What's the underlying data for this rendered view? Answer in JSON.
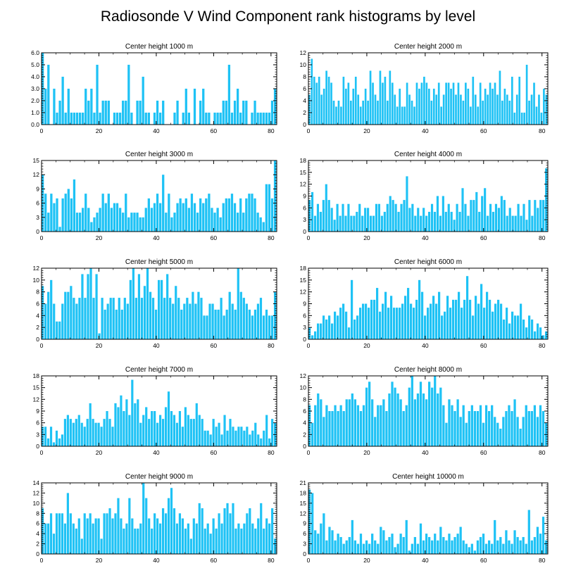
{
  "title": "Radiosonde V Wind Component rank histograms by level",
  "bar_color": "#1ec2f5",
  "chart_data": [
    {
      "type": "bar",
      "title": "Center height 1000 m",
      "xlim": [
        0,
        82
      ],
      "xticks": [
        0,
        20,
        40,
        60,
        80
      ],
      "ylim": [
        0,
        6
      ],
      "yticks": [
        0,
        1,
        2,
        3,
        4,
        5,
        6
      ],
      "ytick_labels": [
        "0.0",
        "1.0",
        "2.0",
        "3.0",
        "4.0",
        "5.0",
        "6.0"
      ],
      "values": [
        6,
        3,
        5,
        0,
        3,
        1,
        2,
        4,
        1,
        3,
        1,
        1,
        1,
        1,
        1,
        3,
        2,
        3,
        1,
        5,
        1,
        2,
        2,
        2,
        0,
        1,
        1,
        1,
        2,
        2,
        5,
        1,
        0,
        2,
        2,
        4,
        1,
        1,
        0,
        1,
        2,
        1,
        2,
        0,
        0,
        0,
        1,
        2,
        0,
        1,
        3,
        1,
        0,
        3,
        0,
        2,
        3,
        1,
        1,
        0,
        1,
        1,
        1,
        2,
        2,
        5,
        1,
        2,
        3,
        1,
        2,
        2,
        0,
        1,
        2,
        1,
        1,
        1,
        1,
        1,
        2,
        3
      ]
    },
    {
      "type": "bar",
      "title": "Center height 2000 m",
      "xlim": [
        0,
        82
      ],
      "xticks": [
        0,
        20,
        40,
        60,
        80
      ],
      "ylim": [
        0,
        12
      ],
      "yticks": [
        0,
        2,
        4,
        6,
        8,
        10,
        12
      ],
      "ytick_labels": [
        "0",
        "2",
        "4",
        "6",
        "8",
        "10",
        "12"
      ],
      "values": [
        5,
        11,
        8,
        7,
        8,
        5,
        6,
        9,
        8,
        7,
        4,
        3,
        4,
        3,
        8,
        6,
        7,
        4,
        6,
        8,
        5,
        3,
        4,
        6,
        4,
        9,
        7,
        5,
        4,
        9,
        7,
        8,
        4,
        9,
        7,
        5,
        3,
        6,
        3,
        3,
        7,
        5,
        4,
        3,
        7,
        6,
        7,
        8,
        7,
        6,
        4,
        6,
        5,
        7,
        3,
        5,
        7,
        7,
        6,
        7,
        5,
        7,
        5,
        4,
        7,
        6,
        3,
        8,
        5,
        3,
        7,
        4,
        6,
        5,
        7,
        6,
        7,
        5,
        9,
        4,
        6,
        5,
        4,
        8,
        2,
        5,
        8,
        2,
        2,
        10,
        4,
        5,
        7,
        3,
        5,
        2,
        6,
        5
      ]
    },
    {
      "type": "bar",
      "title": "Center height 3000 m",
      "xlim": [
        0,
        82
      ],
      "xticks": [
        0,
        20,
        40,
        60,
        80
      ],
      "ylim": [
        0,
        15
      ],
      "yticks": [
        0,
        3,
        6,
        9,
        12,
        15
      ],
      "ytick_labels": [
        "0",
        "3",
        "6",
        "9",
        "12",
        "15"
      ],
      "values": [
        12,
        8,
        4,
        8,
        6,
        7,
        1,
        7,
        8,
        9,
        7,
        11,
        4,
        4,
        5,
        8,
        5,
        2,
        3,
        4,
        5,
        8,
        6,
        8,
        5,
        6,
        6,
        5,
        4,
        8,
        3,
        4,
        4,
        4,
        3,
        3,
        5,
        7,
        5,
        6,
        8,
        6,
        12,
        4,
        8,
        3,
        4,
        6,
        7,
        6,
        7,
        5,
        8,
        6,
        4,
        7,
        6,
        7,
        8,
        5,
        4,
        5,
        3,
        6,
        7,
        7,
        8,
        6,
        4,
        7,
        4,
        7,
        8,
        8,
        7,
        4,
        3,
        2,
        10,
        10,
        7,
        15
      ]
    },
    {
      "type": "bar",
      "title": "Center height 4000 m",
      "xlim": [
        0,
        82
      ],
      "xticks": [
        0,
        20,
        40,
        60,
        80
      ],
      "ylim": [
        0,
        18
      ],
      "yticks": [
        0,
        3,
        6,
        9,
        12,
        15,
        18
      ],
      "ytick_labels": [
        "0",
        "3",
        "6",
        "9",
        "12",
        "15",
        "18"
      ],
      "values": [
        8,
        10,
        4,
        7,
        5,
        8,
        12,
        8,
        6,
        3,
        7,
        4,
        7,
        4,
        7,
        4,
        4,
        5,
        7,
        4,
        6,
        6,
        4,
        4,
        7,
        7,
        4,
        5,
        7,
        9,
        8,
        7,
        5,
        7,
        8,
        14,
        6,
        7,
        4,
        6,
        4,
        6,
        4,
        5,
        7,
        5,
        9,
        4,
        9,
        5,
        7,
        5,
        3,
        7,
        5,
        11,
        7,
        4,
        8,
        8,
        10,
        5,
        9,
        11,
        4,
        7,
        5,
        7,
        6,
        9,
        8,
        4,
        6,
        4,
        4,
        7,
        4,
        7,
        3,
        8,
        4,
        8,
        6,
        8,
        8,
        16
      ]
    },
    {
      "type": "bar",
      "title": "Center height 5000 m",
      "xlim": [
        0,
        82
      ],
      "xticks": [
        0,
        20,
        40,
        60,
        80
      ],
      "ylim": [
        0,
        12
      ],
      "yticks": [
        0,
        2,
        4,
        6,
        8,
        10,
        12
      ],
      "ytick_labels": [
        "0",
        "2",
        "4",
        "6",
        "8",
        "10",
        "12"
      ],
      "values": [
        9,
        6,
        8,
        10,
        6,
        3,
        3,
        6,
        8,
        8,
        9,
        7,
        6,
        7,
        11,
        7,
        11,
        12,
        7,
        11,
        1,
        7,
        5,
        6,
        7,
        7,
        5,
        7,
        5,
        7,
        6,
        10,
        12,
        7,
        11,
        7,
        9,
        12,
        8,
        7,
        5,
        10,
        10,
        7,
        11,
        7,
        6,
        9,
        7,
        5,
        6,
        7,
        6,
        8,
        6,
        8,
        7,
        4,
        4,
        6,
        6,
        5,
        5,
        7,
        4,
        5,
        8,
        6,
        5,
        12,
        8,
        7,
        6,
        5,
        4,
        5,
        6,
        7,
        4,
        5,
        4,
        4,
        8
      ]
    },
    {
      "type": "bar",
      "title": "Center height 6000 m",
      "xlim": [
        0,
        82
      ],
      "xticks": [
        0,
        20,
        40,
        60,
        80
      ],
      "ylim": [
        0,
        18
      ],
      "yticks": [
        0,
        3,
        6,
        9,
        12,
        15,
        18
      ],
      "ytick_labels": [
        "0",
        "3",
        "6",
        "9",
        "12",
        "15",
        "18"
      ],
      "values": [
        3,
        1,
        2,
        4,
        4,
        6,
        5,
        6,
        4,
        7,
        6,
        8,
        9,
        7,
        3,
        15,
        5,
        6,
        8,
        9,
        9,
        8,
        10,
        10,
        13,
        7,
        9,
        12,
        8,
        11,
        8,
        8,
        8,
        9,
        11,
        13,
        9,
        8,
        10,
        15,
        12,
        6,
        8,
        9,
        11,
        9,
        12,
        6,
        7,
        11,
        8,
        10,
        10,
        12,
        8,
        10,
        16,
        10,
        6,
        11,
        9,
        14,
        8,
        12,
        10,
        7,
        9,
        10,
        9,
        5,
        8,
        4,
        7,
        6,
        6,
        9,
        5,
        3,
        6,
        5,
        2,
        4,
        3,
        1,
        2
      ]
    },
    {
      "type": "bar",
      "title": "Center height 7000 m",
      "xlim": [
        0,
        82
      ],
      "xticks": [
        0,
        20,
        40,
        60,
        80
      ],
      "ylim": [
        0,
        18
      ],
      "yticks": [
        0,
        3,
        6,
        9,
        12,
        15,
        18
      ],
      "ytick_labels": [
        "0",
        "3",
        "6",
        "9",
        "12",
        "15",
        "18"
      ],
      "values": [
        5,
        5,
        2,
        5,
        1,
        4,
        2,
        3,
        7,
        8,
        7,
        6,
        7,
        8,
        6,
        5,
        7,
        11,
        7,
        6,
        6,
        5,
        7,
        9,
        7,
        5,
        11,
        10,
        13,
        9,
        12,
        8,
        17,
        11,
        12,
        6,
        8,
        10,
        7,
        9,
        9,
        6,
        8,
        7,
        10,
        14,
        9,
        8,
        6,
        9,
        5,
        10,
        8,
        7,
        7,
        11,
        8,
        7,
        4,
        4,
        3,
        7,
        5,
        6,
        3,
        8,
        4,
        7,
        5,
        4,
        5,
        5,
        4,
        5,
        3,
        4,
        6,
        3,
        2,
        4,
        8,
        2,
        7,
        6
      ]
    },
    {
      "type": "bar",
      "title": "Center height 8000 m",
      "xlim": [
        0,
        82
      ],
      "xticks": [
        0,
        20,
        40,
        60,
        80
      ],
      "ylim": [
        0,
        12
      ],
      "yticks": [
        0,
        2,
        4,
        6,
        8,
        10,
        12
      ],
      "ytick_labels": [
        "0",
        "2",
        "4",
        "6",
        "8",
        "10",
        "12"
      ],
      "values": [
        7,
        4,
        7,
        9,
        8,
        5,
        7,
        6,
        6,
        7,
        6,
        7,
        6,
        8,
        8,
        9,
        8,
        7,
        6,
        7,
        10,
        11,
        8,
        5,
        7,
        7,
        8,
        6,
        9,
        11,
        10,
        9,
        8,
        6,
        7,
        10,
        12,
        8,
        9,
        11,
        9,
        8,
        11,
        10,
        12,
        9,
        10,
        7,
        4,
        8,
        7,
        6,
        8,
        5,
        7,
        4,
        6,
        7,
        6,
        6,
        7,
        4,
        7,
        6,
        7,
        5,
        4,
        3,
        5,
        6,
        7,
        6,
        8,
        5,
        3,
        5,
        7,
        6,
        6,
        7,
        5,
        7,
        6,
        4
      ]
    },
    {
      "type": "bar",
      "title": "Center height 9000 m",
      "xlim": [
        0,
        82
      ],
      "xticks": [
        0,
        20,
        40,
        60,
        80
      ],
      "ylim": [
        0,
        14
      ],
      "yticks": [
        0,
        2,
        4,
        6,
        8,
        10,
        12,
        14
      ],
      "ytick_labels": [
        "0",
        "2",
        "4",
        "6",
        "8",
        "10",
        "12",
        "14"
      ],
      "values": [
        9,
        6,
        6,
        8,
        4,
        8,
        8,
        8,
        6,
        12,
        8,
        6,
        5,
        7,
        3,
        8,
        7,
        8,
        6,
        7,
        7,
        3,
        8,
        8,
        9,
        7,
        8,
        11,
        7,
        5,
        6,
        11,
        7,
        5,
        5,
        6,
        14,
        11,
        7,
        5,
        8,
        7,
        6,
        9,
        8,
        11,
        13,
        9,
        6,
        8,
        7,
        5,
        6,
        3,
        7,
        6,
        10,
        9,
        5,
        6,
        4,
        7,
        5,
        8,
        6,
        9,
        10,
        8,
        10,
        5,
        6,
        5,
        6,
        8,
        9,
        6,
        5,
        7,
        10,
        5,
        7,
        6,
        9,
        3
      ]
    },
    {
      "type": "bar",
      "title": "Center height 10000 m",
      "xlim": [
        0,
        82
      ],
      "xticks": [
        0,
        20,
        40,
        60,
        80
      ],
      "ylim": [
        0,
        21
      ],
      "yticks": [
        0,
        3,
        6,
        9,
        12,
        15,
        18,
        21
      ],
      "ytick_labels": [
        "0",
        "3",
        "6",
        "9",
        "12",
        "15",
        "18",
        "21"
      ],
      "values": [
        19,
        18,
        7,
        6,
        9,
        12,
        4,
        8,
        7,
        4,
        6,
        5,
        3,
        4,
        5,
        10,
        4,
        3,
        6,
        3,
        4,
        3,
        6,
        4,
        3,
        8,
        7,
        4,
        5,
        6,
        2,
        3,
        6,
        5,
        10,
        1,
        3,
        5,
        3,
        9,
        4,
        6,
        5,
        4,
        6,
        4,
        8,
        5,
        4,
        6,
        4,
        5,
        6,
        8,
        4,
        3,
        2,
        3,
        1,
        4,
        5,
        6,
        3,
        4,
        3,
        10,
        4,
        5,
        3,
        7,
        4,
        3,
        7,
        5,
        4,
        5,
        3,
        13,
        4,
        5,
        8,
        6,
        11,
        4
      ]
    }
  ]
}
